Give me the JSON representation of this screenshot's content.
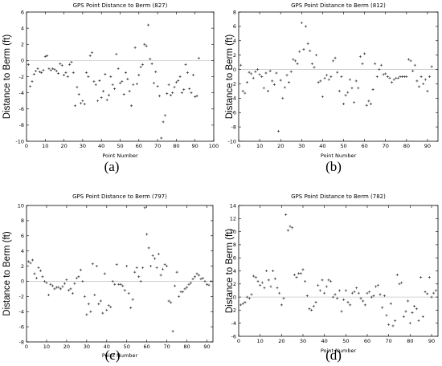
{
  "chart_data": [
    {
      "type": "scatter",
      "title": "GPS Point Distance to Berm (827)",
      "xlabel": "Point Number",
      "ylabel": "Distance to Berm (ft)",
      "xlim": [
        0,
        100
      ],
      "ylim": [
        -10,
        6
      ],
      "xticks": [
        0,
        10,
        20,
        30,
        40,
        50,
        60,
        70,
        80,
        90,
        100
      ],
      "yticks": [
        -10,
        -8,
        -6,
        -4,
        -2,
        0,
        2,
        4,
        6
      ],
      "caption": "(a)",
      "x": [
        1,
        2,
        3,
        4,
        5,
        6,
        7,
        8,
        9,
        10,
        11,
        12,
        13,
        14,
        15,
        16,
        17,
        18,
        19,
        20,
        21,
        22,
        23,
        24,
        25,
        26,
        27,
        28,
        29,
        30,
        31,
        32,
        33,
        34,
        35,
        36,
        37,
        38,
        39,
        40,
        41,
        42,
        43,
        44,
        45,
        46,
        47,
        48,
        49,
        50,
        51,
        52,
        53,
        54,
        55,
        56,
        57,
        58,
        59,
        60,
        61,
        62,
        63,
        64,
        65,
        66,
        67,
        68,
        69,
        70,
        71,
        72,
        73,
        74,
        75,
        76,
        77,
        78,
        79,
        80,
        81,
        82,
        83,
        84,
        85,
        86,
        87,
        88,
        89,
        90,
        91,
        92
      ],
      "y": [
        -0.5,
        -3.2,
        -2.6,
        -1.7,
        -1.3,
        -1.0,
        -1.4,
        -1.5,
        -1.2,
        0.5,
        0.6,
        -1.0,
        -1.2,
        -1.0,
        -1.1,
        -1.3,
        -1.6,
        -0.4,
        -0.6,
        -1.8,
        -1.5,
        -2.0,
        -0.5,
        -0.2,
        -1.5,
        -5.6,
        -3.3,
        -4.2,
        -5.3,
        -5.0,
        -5.4,
        -1.5,
        -2.0,
        0.6,
        1.0,
        -2.6,
        -3.0,
        -5.0,
        -2.5,
        -4.6,
        -3.8,
        -1.7,
        -4.9,
        -4.3,
        -2.0,
        -3.0,
        -3.5,
        0.8,
        -1.0,
        -2.8,
        -2.6,
        -4.2,
        -1.5,
        -2.3,
        -3.8,
        -5.6,
        -3.0,
        1.6,
        -2.9,
        -1.8,
        -0.8,
        -0.5,
        2.0,
        1.8,
        4.4,
        0.2,
        -0.4,
        -2.8,
        -1.4,
        -3.2,
        -4.4,
        -9.6,
        -7.6,
        -6.8,
        -4.1,
        -3.0,
        -4.3,
        -4.0,
        -3.3,
        -2.7,
        -2.5,
        -2.0,
        -4.0,
        -3.6,
        -0.5,
        -1.5,
        -3.5,
        -4.0,
        -1.8,
        -4.5,
        -4.4,
        0.3
      ]
    },
    {
      "type": "scatter",
      "title": "GPS Point Distance to Berm (812)",
      "xlabel": "Point Number",
      "ylabel": "Distance to Berm (ft)",
      "xlim": [
        0,
        95
      ],
      "ylim": [
        -10,
        8
      ],
      "xticks": [
        0,
        10,
        20,
        30,
        40,
        50,
        60,
        70,
        80,
        90
      ],
      "yticks": [
        -10,
        -8,
        -6,
        -4,
        -2,
        0,
        2,
        4,
        6,
        8
      ],
      "caption": "(b)",
      "x": [
        1,
        2,
        3,
        4,
        5,
        6,
        7,
        8,
        9,
        10,
        11,
        12,
        13,
        14,
        15,
        16,
        17,
        18,
        19,
        20,
        21,
        22,
        23,
        24,
        25,
        26,
        27,
        28,
        29,
        30,
        31,
        32,
        33,
        34,
        35,
        36,
        37,
        38,
        39,
        40,
        41,
        42,
        43,
        44,
        45,
        46,
        47,
        48,
        49,
        50,
        51,
        52,
        53,
        54,
        55,
        56,
        57,
        58,
        59,
        60,
        61,
        62,
        63,
        64,
        65,
        66,
        67,
        68,
        69,
        70,
        71,
        72,
        73,
        74,
        75,
        76,
        77,
        78,
        79,
        80,
        81,
        82,
        83,
        84,
        85,
        86,
        87,
        88,
        89,
        90,
        91,
        92
      ],
      "y": [
        0.6,
        -3.0,
        -3.3,
        -1.8,
        -0.4,
        -0.6,
        -1.2,
        -0.3,
        0.0,
        -0.7,
        -1.0,
        -2.6,
        -0.5,
        -3.0,
        -0.2,
        -1.6,
        -2.1,
        -0.5,
        -8.6,
        -1.5,
        -4.0,
        -2.5,
        -0.8,
        -1.8,
        -0.3,
        1.4,
        1.2,
        0.8,
        2.5,
        6.5,
        2.8,
        6.0,
        3.6,
        2.6,
        0.8,
        0.3,
        2.0,
        -1.8,
        -1.6,
        -3.8,
        -1.2,
        -0.8,
        -1.4,
        -1.0,
        1.2,
        1.6,
        -0.4,
        -3.0,
        -1.0,
        -4.8,
        -3.6,
        -3.2,
        -1.4,
        -2.6,
        -4.6,
        -1.6,
        -2.6,
        1.8,
        0.8,
        2.2,
        -5.0,
        -4.4,
        -4.8,
        -2.8,
        0.8,
        -1.0,
        0.0,
        0.6,
        -0.7,
        -0.6,
        -1.0,
        -1.2,
        -1.8,
        -1.4,
        -1.2,
        -1.2,
        -1.0,
        -1.0,
        -1.0,
        -1.0,
        1.4,
        1.2,
        -0.2,
        0.6,
        -1.6,
        -2.4,
        -1.0,
        -2.0,
        -1.4,
        -3.0,
        -1.0,
        0.4
      ]
    },
    {
      "type": "scatter",
      "title": "GPS Point Distance to Berm (797)",
      "xlabel": "Point Number",
      "ylabel": "Distance to Berm (ft)",
      "xlim": [
        0,
        93
      ],
      "ylim": [
        -8,
        10
      ],
      "xticks": [
        0,
        10,
        20,
        30,
        40,
        50,
        60,
        70,
        80,
        90
      ],
      "yticks": [
        -8,
        -6,
        -4,
        -2,
        0,
        2,
        4,
        6,
        8,
        10
      ],
      "caption": "(c)",
      "x": [
        1,
        2,
        3,
        4,
        5,
        6,
        7,
        8,
        9,
        10,
        11,
        12,
        13,
        14,
        15,
        16,
        17,
        18,
        19,
        20,
        21,
        22,
        23,
        24,
        25,
        26,
        27,
        28,
        29,
        30,
        31,
        32,
        33,
        34,
        35,
        36,
        37,
        38,
        39,
        40,
        41,
        42,
        43,
        44,
        45,
        46,
        47,
        48,
        49,
        50,
        51,
        52,
        53,
        54,
        55,
        56,
        57,
        58,
        59,
        60,
        61,
        62,
        63,
        64,
        65,
        66,
        67,
        68,
        69,
        70,
        71,
        72,
        73,
        74,
        75,
        76,
        77,
        78,
        79,
        80,
        81,
        82,
        83,
        84,
        85,
        86,
        87,
        88,
        89,
        90,
        91,
        92
      ],
      "y": [
        2.6,
        2.4,
        2.8,
        1.0,
        0.4,
        1.8,
        1.4,
        0.6,
        0.0,
        -0.2,
        -1.8,
        -0.4,
        -0.6,
        -1.0,
        -0.8,
        -0.8,
        -1.0,
        -0.7,
        -0.3,
        0.2,
        -1.2,
        -1.0,
        -1.6,
        -0.3,
        0.4,
        0.6,
        1.5,
        0.0,
        -2.0,
        -4.4,
        -3.0,
        -4.0,
        2.3,
        -1.8,
        2.0,
        -3.0,
        -2.6,
        -4.2,
        1.0,
        -3.8,
        -3.2,
        -3.4,
        0.0,
        -0.4,
        2.2,
        -0.4,
        -0.4,
        -0.6,
        -1.2,
        2.0,
        -1.6,
        -3.5,
        -2.4,
        1.2,
        1.8,
        0.6,
        0.0,
        1.8,
        9.7,
        6.2,
        4.4,
        2.0,
        3.4,
        3.0,
        1.8,
        3.6,
        0.8,
        1.6,
        2.2,
        2.0,
        -2.6,
        -2.8,
        -6.6,
        -0.6,
        1.2,
        -2.0,
        -1.4,
        -1.4,
        -1.0,
        -0.8,
        -0.4,
        -0.2,
        0.3,
        0.6,
        1.0,
        0.8,
        0.3,
        0.4,
        0.0,
        -0.4,
        -0.5,
        0.0
      ]
    },
    {
      "type": "scatter",
      "title": "GPS Point Distance to Berm (782)",
      "xlabel": "Point Number",
      "ylabel": "Distance to Berm (ft)",
      "xlim": [
        0,
        93
      ],
      "ylim": [
        -6,
        14
      ],
      "xticks": [
        0,
        10,
        20,
        30,
        40,
        50,
        60,
        70,
        80,
        90
      ],
      "yticks": [
        -6,
        -4,
        -2,
        0,
        2,
        4,
        6,
        8,
        10,
        12,
        14
      ],
      "caption": "(d)",
      "x": [
        1,
        2,
        3,
        4,
        5,
        6,
        7,
        8,
        9,
        10,
        11,
        12,
        13,
        14,
        15,
        16,
        17,
        18,
        19,
        20,
        21,
        22,
        23,
        24,
        25,
        26,
        27,
        28,
        29,
        30,
        31,
        32,
        33,
        34,
        35,
        36,
        37,
        38,
        39,
        40,
        41,
        42,
        43,
        44,
        45,
        46,
        47,
        48,
        49,
        50,
        51,
        52,
        53,
        54,
        55,
        56,
        57,
        58,
        59,
        60,
        61,
        62,
        63,
        64,
        65,
        66,
        67,
        68,
        69,
        70,
        71,
        72,
        73,
        74,
        75,
        76,
        77,
        78,
        79,
        80,
        81,
        82,
        83,
        84,
        85,
        86,
        87,
        88,
        89,
        90,
        91,
        92
      ],
      "y": [
        -1.2,
        -1.0,
        -0.8,
        0.0,
        -0.2,
        0.4,
        3.2,
        3.0,
        2.4,
        1.8,
        2.2,
        1.4,
        4.0,
        2.6,
        1.6,
        4.0,
        2.8,
        1.4,
        0.6,
        -1.2,
        -0.2,
        12.6,
        10.2,
        10.8,
        10.6,
        3.4,
        3.0,
        3.6,
        3.6,
        4.2,
        2.4,
        0.2,
        -1.8,
        -2.0,
        -1.4,
        -0.8,
        1.8,
        1.0,
        2.6,
        0.6,
        1.6,
        2.6,
        2.4,
        0.0,
        0.4,
        -0.2,
        1.0,
        -2.2,
        -0.4,
        1.0,
        -0.8,
        -1.2,
        0.6,
        0.8,
        1.4,
        0.6,
        -0.2,
        -0.6,
        -1.2,
        0.6,
        0.8,
        0.0,
        0.2,
        1.6,
        1.8,
        0.4,
        -1.6,
        0.2,
        -2.8,
        -4.2,
        -1.0,
        -4.4,
        -3.6,
        3.4,
        2.0,
        2.2,
        -3.0,
        -2.2,
        -0.6,
        -4.0,
        -2.4,
        -1.4,
        -1.8,
        -3.6,
        3.0,
        -3.0,
        0.8,
        0.5,
        3.0,
        0.0,
        0.6,
        1.0
      ]
    }
  ]
}
